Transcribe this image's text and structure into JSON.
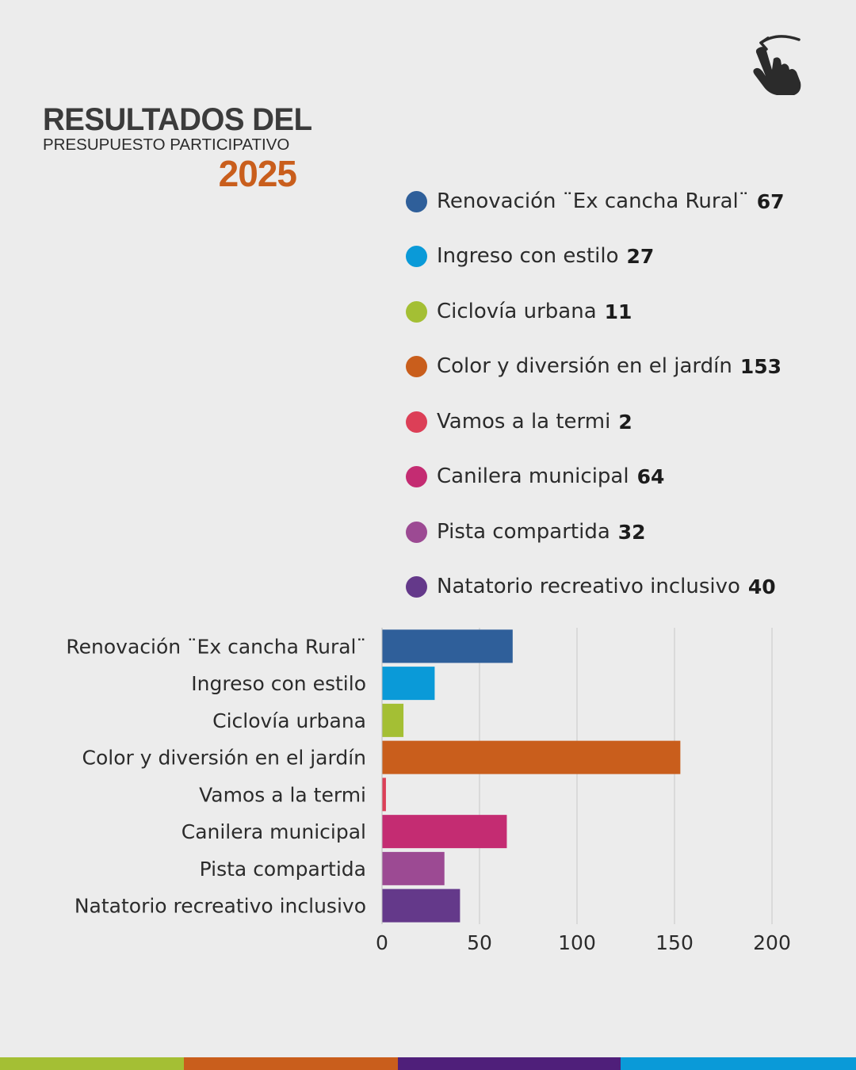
{
  "header": {
    "title": "RESULTADOS DEL",
    "subtitle": "PRESUPUESTO PARTICIPATIVO",
    "year": "2025",
    "year_color": "#c95e1c"
  },
  "icons": {
    "swipe": "pointing-hand-swipe-icon"
  },
  "chart_data": {
    "type": "bar",
    "orientation": "horizontal",
    "title": "RESULTADOS DEL PRESUPUESTO PARTICIPATIVO 2025",
    "categories": [
      "Renovación ¨Ex cancha Rural¨",
      "Ingreso con estilo",
      "Ciclovía urbana",
      "Color y diversión en el jardín",
      "Vamos a la termi",
      "Canilera municipal",
      "Pista compartida",
      "Natatorio recreativo inclusivo"
    ],
    "values": [
      67,
      27,
      11,
      153,
      2,
      64,
      32,
      40
    ],
    "value_labels": [
      "67",
      "27",
      "11",
      "153",
      "2",
      "64",
      "32",
      "40"
    ],
    "colors": [
      "#2f5f9a",
      "#0a9ad8",
      "#a4bf34",
      "#c95e1c",
      "#dc3f57",
      "#c42c72",
      "#9c4a93",
      "#64398a"
    ],
    "xlim": [
      0,
      200
    ],
    "xticks": [
      0,
      50,
      100,
      150,
      200
    ],
    "xtick_labels": [
      "0",
      "50",
      "100",
      "150",
      "200"
    ],
    "grid": true,
    "legend": "top-right"
  },
  "footer": {
    "stripe_colors": [
      "#a4bf34",
      "#c95e1c",
      "#4f1f7a",
      "#0a9ad8"
    ]
  }
}
